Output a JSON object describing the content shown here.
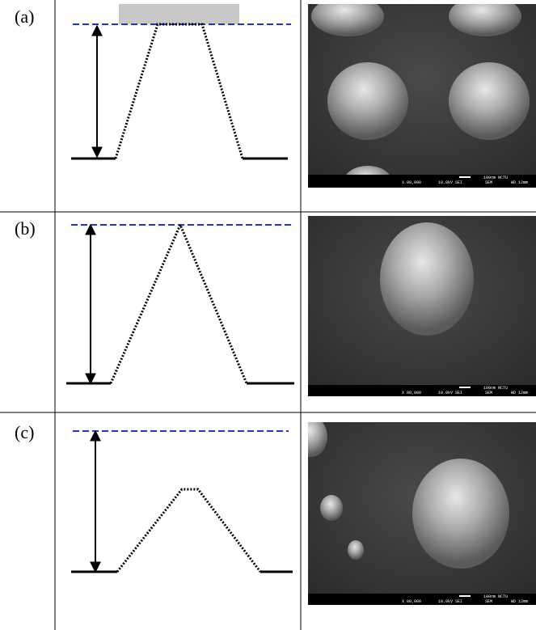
{
  "panels": [
    {
      "label": "(a)",
      "sem": {
        "scale": "100nm NCTU",
        "mag": "X 80,000",
        "kv": "10.0kV SEI",
        "inst": "SEM",
        "wd": "WD 12mm"
      }
    },
    {
      "label": "(b)",
      "sem": {
        "scale": "100nm NCTU",
        "mag": "X 80,000",
        "kv": "10.0kV SEI",
        "inst": "SEM",
        "wd": "WD 12mm"
      }
    },
    {
      "label": "(c)",
      "sem": {
        "scale": "100nm NCTU",
        "mag": "X 80,000",
        "kv": "10.0kV SEI",
        "inst": "SEM",
        "wd": "WD 12mm"
      }
    }
  ]
}
